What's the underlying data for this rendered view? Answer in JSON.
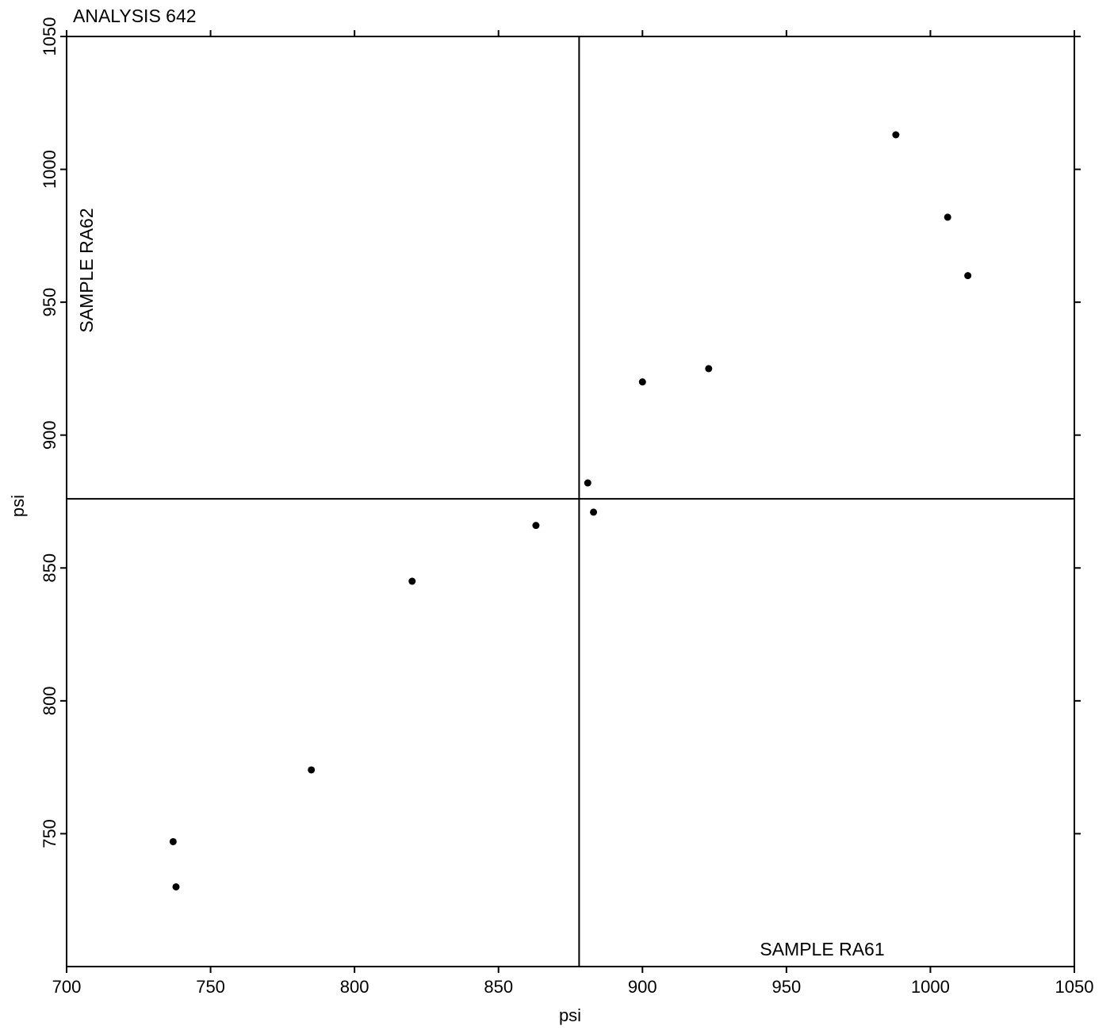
{
  "chart_data": {
    "type": "scatter",
    "title": "ANALYSIS 642",
    "xlabel": "psi",
    "ylabel": "psi",
    "x_series_label": "SAMPLE RA61",
    "y_series_label": "SAMPLE RA62",
    "xlim": [
      700,
      1050
    ],
    "ylim": [
      700,
      1050
    ],
    "x_ticks": [
      700,
      750,
      800,
      850,
      900,
      950,
      1000,
      1050
    ],
    "y_ticks": [
      750,
      800,
      850,
      900,
      950,
      1000,
      1050
    ],
    "reference_lines": {
      "x_mean": 878,
      "y_mean": 876
    },
    "points": [
      {
        "x": 737,
        "y": 747
      },
      {
        "x": 738,
        "y": 730
      },
      {
        "x": 785,
        "y": 774
      },
      {
        "x": 820,
        "y": 845
      },
      {
        "x": 863,
        "y": 866
      },
      {
        "x": 881,
        "y": 882
      },
      {
        "x": 883,
        "y": 871
      },
      {
        "x": 900,
        "y": 920
      },
      {
        "x": 923,
        "y": 925
      },
      {
        "x": 988,
        "y": 1013
      },
      {
        "x": 1006,
        "y": 982
      },
      {
        "x": 1013,
        "y": 960
      }
    ],
    "grid": false,
    "legend": "none",
    "colors": {
      "axis": "#000000",
      "points": "#000000",
      "background": "#ffffff"
    }
  }
}
